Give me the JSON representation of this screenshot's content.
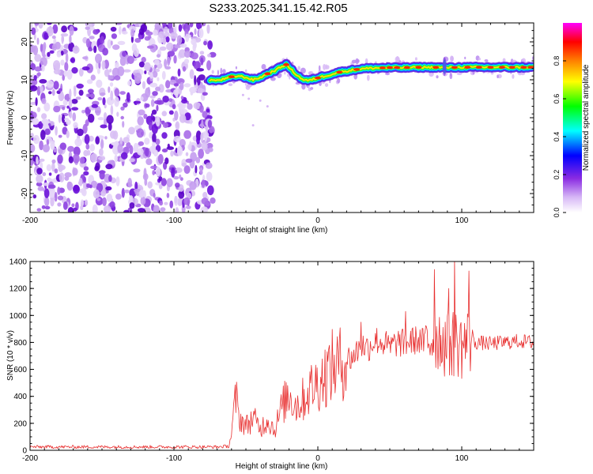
{
  "title": "S233.2025.341.15.42.R05",
  "colors": {
    "blob": "#7a2be0",
    "ridge_core": "#ff2a00",
    "snr_line": "#e83030",
    "frame": "#000000"
  },
  "chart_data": [
    {
      "type": "heatmap",
      "title": "S233.2025.341.15.42.R05",
      "xlabel": "Height of straight line (km)",
      "ylabel": "Frequency (Hz)",
      "xlim": [
        -200,
        150
      ],
      "ylim": [
        -25,
        25
      ],
      "xticks": [
        -200,
        -100,
        0,
        100
      ],
      "yticks": [
        -20,
        -10,
        0,
        10,
        20
      ],
      "colorbar": {
        "label": "Normalized spectral amplitude",
        "range": [
          0,
          1
        ],
        "ticks": [
          0,
          0.2,
          0.4,
          0.6,
          0.8
        ],
        "colormap": "rainbow (white → violet → blue → cyan → green → yellow → red → magenta)"
      },
      "noise_region_km": [
        -200,
        -73
      ],
      "ridge_frequency_hz": {
        "x": [
          -75,
          -70,
          -65,
          -60,
          -55,
          -50,
          -45,
          -40,
          -35,
          -30,
          -25,
          -22,
          -18,
          -14,
          -10,
          -6,
          0,
          5,
          10,
          15,
          20,
          25,
          30,
          40,
          50,
          60,
          70,
          80,
          90,
          100,
          110,
          120,
          130,
          140,
          150
        ],
        "y": [
          10,
          9.8,
          10.2,
          10.8,
          11.0,
          10.6,
          10.0,
          10.6,
          11.6,
          12.4,
          13.5,
          14.0,
          12.5,
          11.0,
          10.0,
          9.8,
          10.5,
          11.0,
          11.5,
          12.0,
          12.3,
          12.6,
          12.9,
          13.1,
          13.2,
          13.2,
          13.3,
          13.3,
          13.2,
          13.3,
          13.3,
          13.3,
          13.3,
          13.3,
          13.3
        ]
      }
    },
    {
      "type": "line",
      "xlabel": "Height of straight line (km)",
      "ylabel": "SNR (10 * v/v)",
      "xlim": [
        -200,
        150
      ],
      "ylim": [
        0,
        1400
      ],
      "xticks": [
        -200,
        -100,
        0,
        100
      ],
      "yticks": [
        0,
        200,
        400,
        600,
        800,
        1000,
        1200,
        1400
      ],
      "series": [
        {
          "name": "SNR",
          "x": [
            -200,
            -150,
            -100,
            -70,
            -62,
            -60,
            -57,
            -55,
            -50,
            -45,
            -40,
            -35,
            -30,
            -25,
            -20,
            -15,
            -10,
            -5,
            0,
            5,
            10,
            15,
            20,
            25,
            30,
            35,
            40,
            45,
            50,
            55,
            60,
            65,
            70,
            75,
            80,
            85,
            90,
            95,
            100,
            105,
            110,
            120,
            130,
            140,
            150
          ],
          "values": [
            25,
            25,
            25,
            25,
            30,
            120,
            400,
            250,
            180,
            240,
            160,
            230,
            150,
            320,
            420,
            330,
            380,
            460,
            500,
            560,
            620,
            640,
            670,
            700,
            780,
            760,
            820,
            800,
            760,
            800,
            790,
            810,
            820,
            790,
            850,
            830,
            780,
            800,
            780,
            810,
            800,
            790,
            800,
            810,
            800
          ]
        }
      ],
      "spikes": [
        {
          "x": 30,
          "value": 950
        },
        {
          "x": 61,
          "value": 1030
        },
        {
          "x": 81,
          "value": 1340
        },
        {
          "x": 91,
          "value": 1200
        },
        {
          "x": 95,
          "value": 1420
        },
        {
          "x": 105,
          "value": 1330
        }
      ]
    }
  ]
}
